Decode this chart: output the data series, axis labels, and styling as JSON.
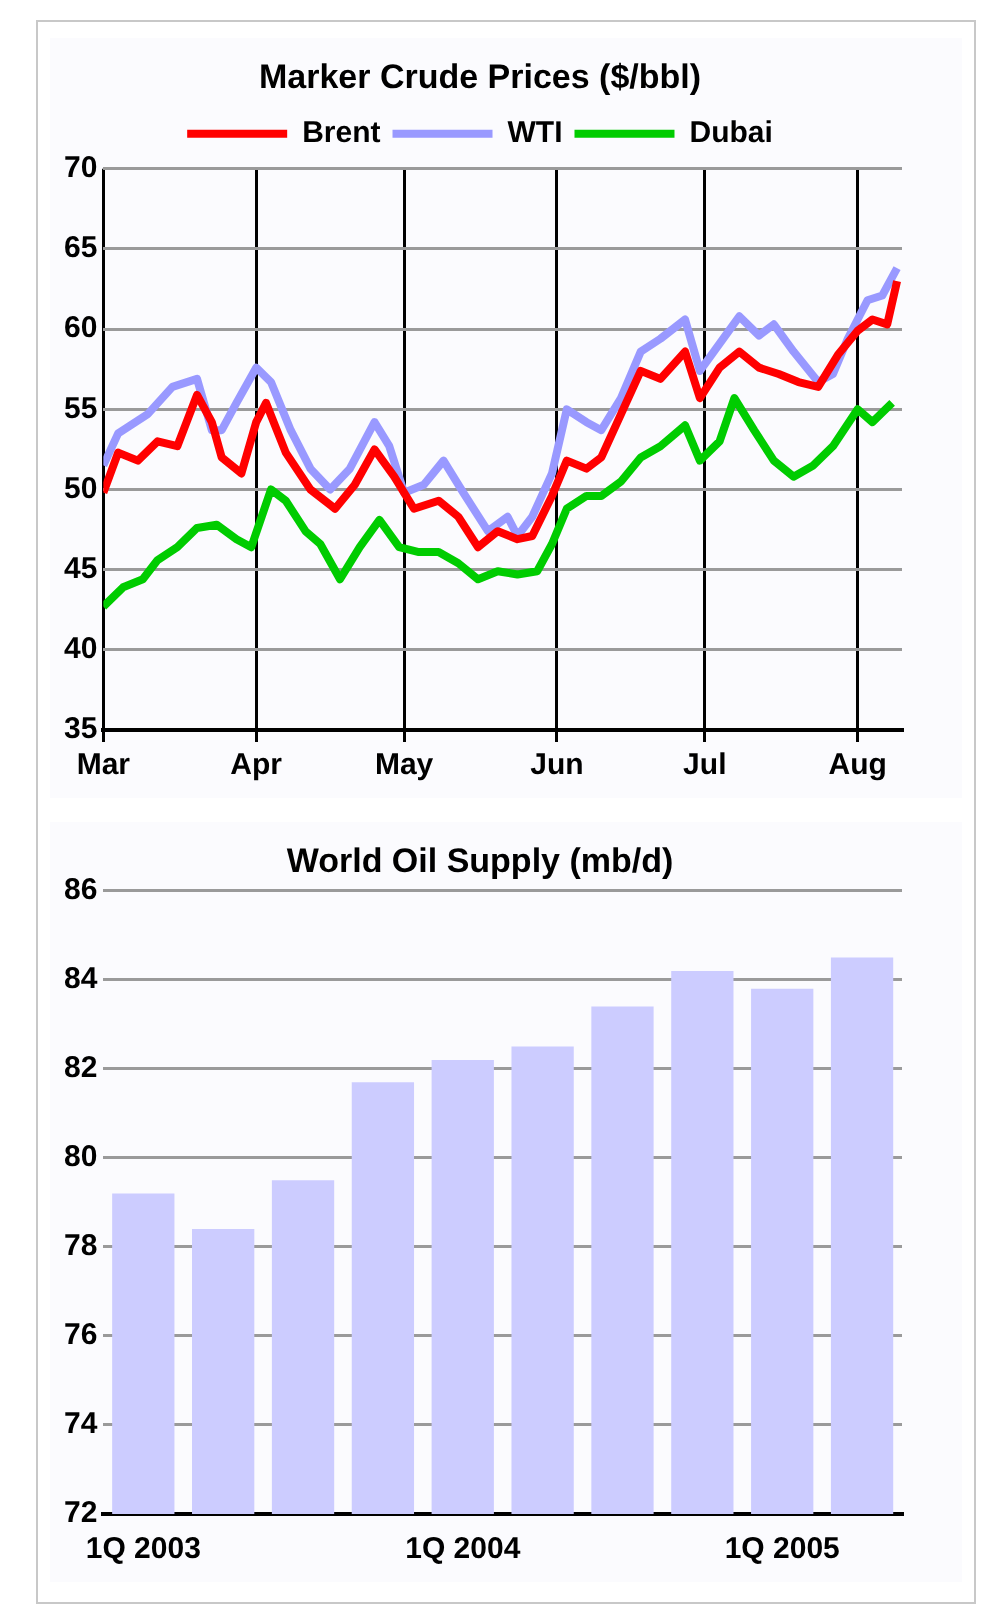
{
  "chart_data": [
    {
      "type": "line",
      "title": "Marker Crude Prices ($/bbl)",
      "legend": "top",
      "grid": true,
      "line_style": "solid",
      "marker": "none",
      "xlim": [
        "--03-01",
        "--08-10"
      ],
      "xticks": [
        {
          "value": "--03-01",
          "label": "Mar"
        },
        {
          "value": "--04-01",
          "label": "Apr"
        },
        {
          "value": "--05-01",
          "label": "May"
        },
        {
          "value": "--06-01",
          "label": "Jun"
        },
        {
          "value": "--07-01",
          "label": "Jul"
        },
        {
          "value": "--08-01",
          "label": "Aug"
        }
      ],
      "ylim": [
        35,
        70
      ],
      "yticks": [
        35,
        40,
        45,
        50,
        55,
        60,
        65,
        70
      ],
      "series": [
        {
          "name": "Brent",
          "color": "#ff0000",
          "x": [
            "--03-01",
            "--03-04",
            "--03-08",
            "--03-12",
            "--03-16",
            "--03-20",
            "--03-23",
            "--03-25",
            "--03-29",
            "--04-01",
            "--04-03",
            "--04-07",
            "--04-12",
            "--04-17",
            "--04-21",
            "--04-25",
            "--04-29",
            "--05-03",
            "--05-08",
            "--05-12",
            "--05-16",
            "--05-20",
            "--05-24",
            "--05-27",
            "--05-31",
            "--06-03",
            "--06-07",
            "--06-10",
            "--06-14",
            "--06-18",
            "--06-22",
            "--06-27",
            "--06-30",
            "--07-04",
            "--07-08",
            "--07-12",
            "--07-16",
            "--07-20",
            "--07-24",
            "--07-28",
            "--08-01",
            "--08-04",
            "--08-07",
            "--08-09"
          ],
          "values": [
            49.8,
            52.3,
            51.8,
            53,
            52.7,
            55.9,
            54.2,
            52,
            51,
            54.2,
            55.4,
            52.3,
            50,
            48.8,
            50.3,
            52.5,
            50.8,
            48.8,
            49.3,
            48.3,
            46.4,
            47.4,
            46.9,
            47.1,
            49.6,
            51.8,
            51.3,
            52,
            54.7,
            57.4,
            56.9,
            58.6,
            55.7,
            57.6,
            58.6,
            57.6,
            57.2,
            56.7,
            56.4,
            58.4,
            59.9,
            60.6,
            60.3,
            63
          ]
        },
        {
          "name": "WTI",
          "color": "#9999ff",
          "x": [
            "--03-01",
            "--03-04",
            "--03-10",
            "--03-15",
            "--03-20",
            "--03-23",
            "--03-25",
            "--03-28",
            "--04-01",
            "--04-04",
            "--04-08",
            "--04-12",
            "--04-16",
            "--04-20",
            "--04-25",
            "--04-28",
            "--05-01",
            "--05-05",
            "--05-09",
            "--05-13",
            "--05-18",
            "--05-22",
            "--05-24",
            "--05-27",
            "--05-31",
            "--06-03",
            "--06-07",
            "--06-10",
            "--06-14",
            "--06-18",
            "--06-22",
            "--06-27",
            "--06-30",
            "--07-04",
            "--07-08",
            "--07-12",
            "--07-15",
            "--07-19",
            "--07-24",
            "--07-27",
            "--07-30",
            "--08-03",
            "--08-06",
            "--08-09"
          ],
          "values": [
            51.5,
            53.5,
            54.7,
            56.4,
            56.9,
            53.7,
            53.7,
            55.4,
            57.6,
            56.7,
            53.7,
            51.3,
            50,
            51.3,
            54.2,
            52.7,
            49.8,
            50.3,
            51.8,
            49.8,
            47.4,
            48.3,
            47.1,
            48.3,
            51,
            55,
            54.2,
            53.7,
            55.7,
            58.6,
            59.4,
            60.6,
            57.4,
            59.1,
            60.8,
            59.6,
            60.3,
            58.6,
            56.7,
            57.2,
            59.4,
            61.8,
            62.1,
            63.8
          ]
        },
        {
          "name": "Dubai",
          "color": "#00cc00",
          "x": [
            "--03-01",
            "--03-05",
            "--03-09",
            "--03-12",
            "--03-16",
            "--03-20",
            "--03-24",
            "--03-28",
            "--03-31",
            "--04-04",
            "--04-07",
            "--04-11",
            "--04-14",
            "--04-18",
            "--04-22",
            "--04-26",
            "--04-30",
            "--05-04",
            "--05-08",
            "--05-12",
            "--05-16",
            "--05-20",
            "--05-24",
            "--05-28",
            "--05-31",
            "--06-03",
            "--06-07",
            "--06-10",
            "--06-14",
            "--06-18",
            "--06-22",
            "--06-27",
            "--06-30",
            "--07-04",
            "--07-07",
            "--07-11",
            "--07-15",
            "--07-19",
            "--07-23",
            "--07-27",
            "--08-01",
            "--08-04",
            "--08-08"
          ],
          "values": [
            42.7,
            43.9,
            44.4,
            45.6,
            46.4,
            47.6,
            47.8,
            46.9,
            46.4,
            50,
            49.3,
            47.4,
            46.6,
            44.4,
            46.4,
            48.1,
            46.4,
            46.1,
            46.1,
            45.4,
            44.4,
            44.9,
            44.7,
            44.9,
            46.6,
            48.8,
            49.6,
            49.6,
            50.5,
            52,
            52.7,
            54,
            51.8,
            53,
            55.7,
            53.7,
            51.8,
            50.8,
            51.5,
            52.7,
            55,
            54.2,
            55.4
          ]
        }
      ]
    },
    {
      "type": "bar",
      "title": "World Oil Supply (mb/d)",
      "legend": false,
      "grid": "y",
      "color": "#ccccff",
      "categories": [
        "1Q 2003",
        null,
        null,
        null,
        "1Q 2004",
        null,
        null,
        null,
        "1Q 2005",
        null
      ],
      "values": [
        79.2,
        78.4,
        79.5,
        81.7,
        82.2,
        82.5,
        83.4,
        84.2,
        83.8,
        84.5
      ],
      "ylim": [
        72,
        86
      ],
      "yticks": [
        72,
        74,
        76,
        78,
        80,
        82,
        84,
        86
      ]
    }
  ]
}
